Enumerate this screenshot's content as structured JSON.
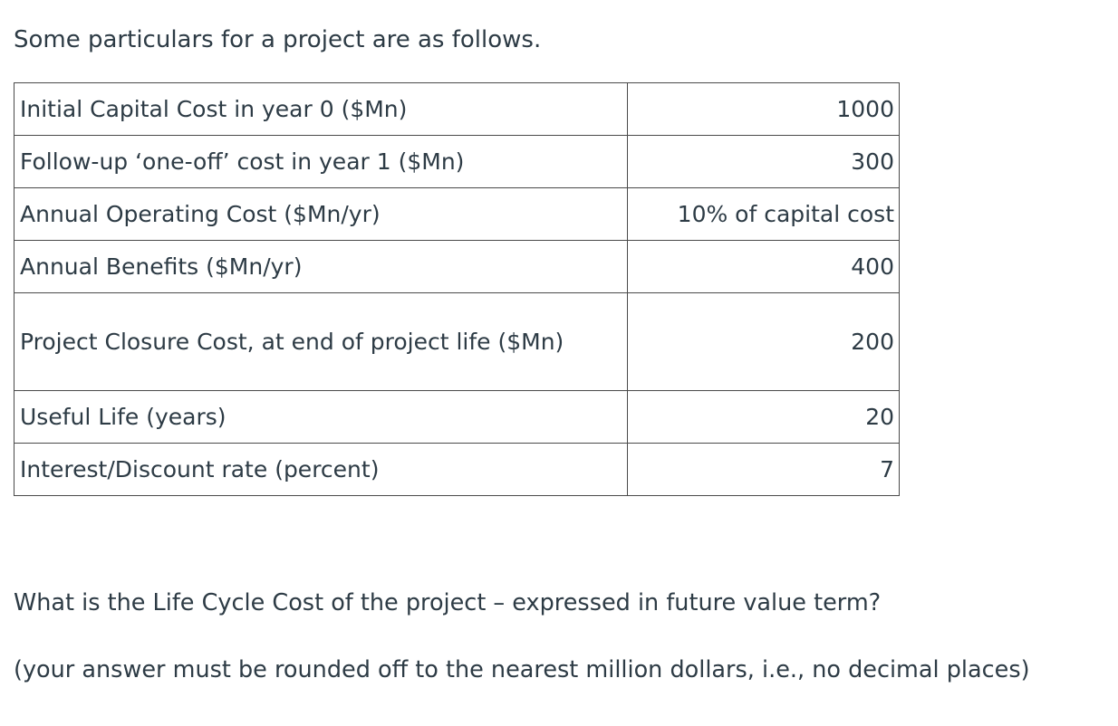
{
  "intro": "Some particulars for a project are as follows.",
  "table": {
    "rows": [
      {
        "label": "Initial Capital Cost in year 0 ($Mn)",
        "value": "1000"
      },
      {
        "label": "Follow-up ‘one-off’ cost in year 1 ($Mn)",
        "value": "300"
      },
      {
        "label": "Annual Operating Cost ($Mn/yr)",
        "value": "10% of capital cost"
      },
      {
        "label": "Annual Benefits ($Mn/yr)",
        "value": "400"
      },
      {
        "label": "Project Closure Cost, at end of project life ($Mn)",
        "value": "200"
      },
      {
        "label": "Useful Life (years)",
        "value": "20"
      },
      {
        "label": "Interest/Discount rate (percent)",
        "value": "7"
      }
    ]
  },
  "question": "What is the Life Cycle Cost of the project – expressed in future value term?",
  "instruction": "(your answer must be rounded off to the nearest million dollars, i.e., no decimal places)"
}
